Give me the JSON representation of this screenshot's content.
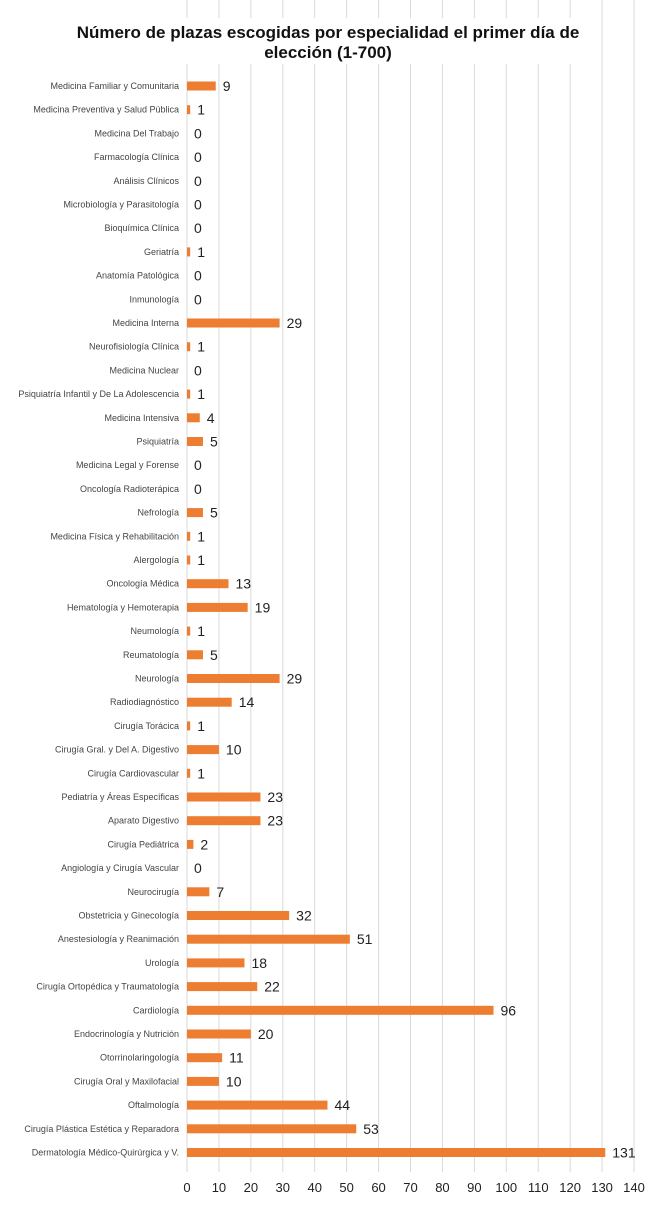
{
  "chart_data": {
    "type": "bar",
    "orientation": "horizontal",
    "title_lines": [
      "Número de plazas escogidas por especialidad el primer día de",
      "elección (1-700)"
    ],
    "categories": [
      "Medicina Familiar y Comunitaria",
      "Medicina Preventiva y Salud Pública",
      "Medicina Del Trabajo",
      "Farmacología Clínica",
      "Análisis Clínicos",
      "Microbiología y Parasitología",
      "Bioquímica Clínica",
      "Geriatría",
      "Anatomía Patológica",
      "Inmunología",
      "Medicina Interna",
      "Neurofisiología Clínica",
      "Medicina Nuclear",
      "Psiquiatría Infantil y De La Adolescencia",
      "Medicina Intensiva",
      "Psiquiatría",
      "Medicina Legal y Forense",
      "Oncología Radioterápica",
      "Nefrología",
      "Medicina Física y Rehabilitación",
      "Alergología",
      "Oncología Médica",
      "Hematología y Hemoterapia",
      "Neumología",
      "Reumatología",
      "Neurología",
      "Radiodiagnóstico",
      "Cirugía Torácica",
      "Cirugía Gral. y Del A. Digestivo",
      "Cirugía Cardiovascular",
      "Pediatría y Áreas Específicas",
      "Aparato Digestivo",
      "Cirugía Pediátrica",
      "Angiología y Cirugía Vascular",
      "Neurocirugía",
      "Obstetricia y Ginecología",
      "Anestesiología y Reanimación",
      "Urología",
      "Cirugía Ortopédica y Traumatología",
      "Cardiología",
      "Endocrinología y Nutrición",
      "Otorrinolaringología",
      "Cirugía Oral y Maxilofacial",
      "Oftalmología",
      "Cirugía Plástica Estética y Reparadora",
      "Dermatología Médico-Quirúrgica y V."
    ],
    "values": [
      9,
      1,
      0,
      0,
      0,
      0,
      0,
      1,
      0,
      0,
      29,
      1,
      0,
      1,
      4,
      5,
      0,
      0,
      5,
      1,
      1,
      13,
      19,
      1,
      5,
      29,
      14,
      1,
      10,
      1,
      23,
      23,
      2,
      0,
      7,
      32,
      51,
      18,
      22,
      96,
      20,
      11,
      10,
      44,
      53,
      131
    ],
    "xlim": [
      0,
      140
    ],
    "xticks": [
      0,
      10,
      20,
      30,
      40,
      50,
      60,
      70,
      80,
      90,
      100,
      110,
      120,
      130,
      140
    ],
    "grid": "vertical",
    "bar_color": "#ED7D31"
  }
}
